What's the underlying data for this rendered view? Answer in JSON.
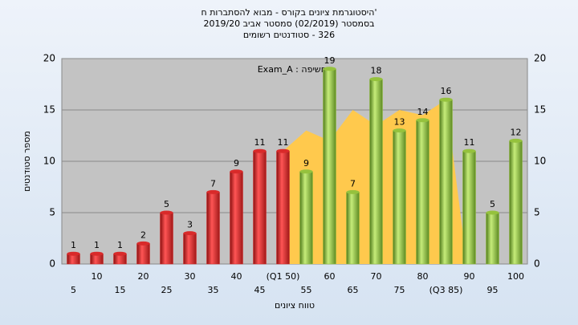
{
  "chart_data": {
    "type": "bar",
    "title": [
      "'היסטוגרמת ציונים בקורס - מבוא להסתברות ח",
      "בסמסטר  (02/2019)  סמסטר אביב 2019/20",
      "326 - סטודנטים רשומים"
    ],
    "annotation": "בחשיפה : Exam_A",
    "x_label": "טווח ציונים",
    "y_label": "מספר סטודנטים",
    "categories": [
      "5",
      "10",
      "15",
      "20",
      "25",
      "30",
      "35",
      "40",
      "45",
      "(Q1 50)",
      "55",
      "60",
      "65",
      "70",
      "75",
      "80",
      "(Q3 85)",
      "90",
      "95",
      "100"
    ],
    "series": [
      {
        "color": "#d92a2a",
        "values": [
          1,
          1,
          1,
          2,
          5,
          3,
          7,
          9,
          11,
          11,
          null,
          null,
          null,
          null,
          null,
          null,
          null,
          null,
          null,
          null
        ]
      },
      {
        "color": "#95c23d",
        "values": [
          null,
          null,
          null,
          null,
          null,
          null,
          null,
          null,
          null,
          null,
          9,
          19,
          7,
          18,
          13,
          14,
          16,
          11,
          5,
          12
        ]
      }
    ],
    "area": {
      "color": "#ffc94d",
      "values": [
        null,
        null,
        null,
        null,
        null,
        null,
        null,
        null,
        null,
        11,
        13,
        12,
        15,
        13.5,
        15,
        14.5,
        16,
        null,
        null,
        null
      ]
    },
    "ylim": [
      0,
      20
    ],
    "yticks": [
      0,
      5,
      10,
      15,
      20
    ],
    "grid": true
  }
}
